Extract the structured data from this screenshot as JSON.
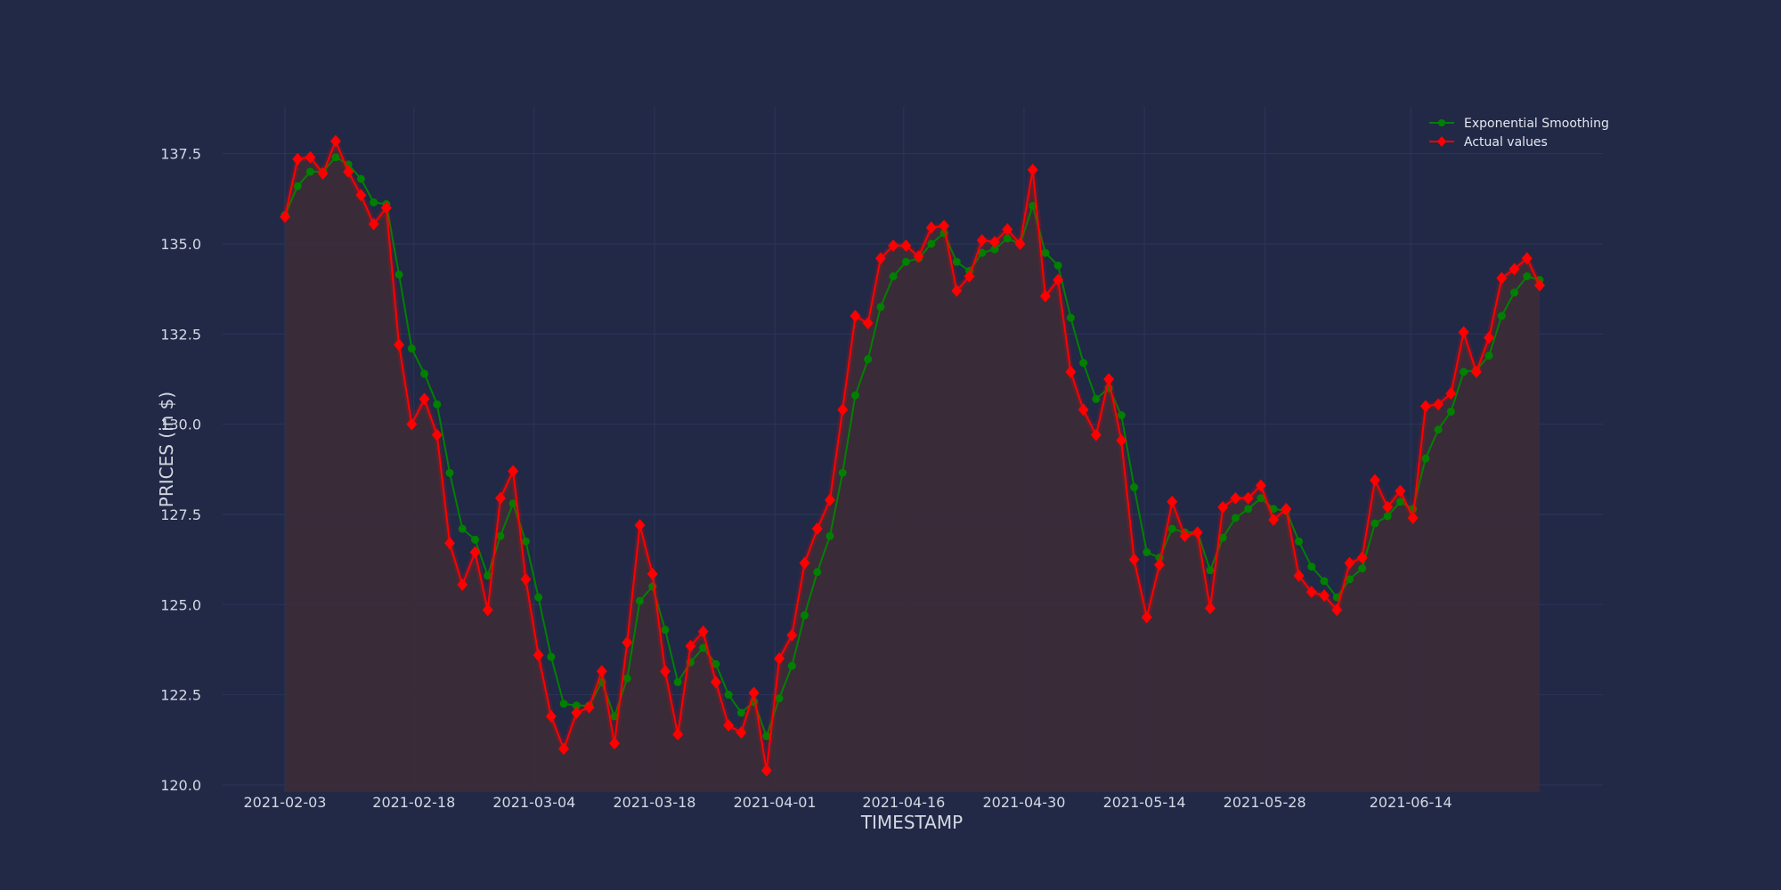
{
  "chart_data": {
    "type": "line",
    "title": "",
    "xlabel": "TIMESTAMP",
    "ylabel": "PRICES (in $)",
    "ylim": [
      119.8,
      138.8
    ],
    "yticks": [
      "120.0",
      "122.5",
      "125.0",
      "127.5",
      "130.0",
      "132.5",
      "135.0",
      "137.5"
    ],
    "xticks": [
      "2021-02-03",
      "2021-02-18",
      "2021-03-04",
      "2021-03-18",
      "2021-04-01",
      "2021-04-16",
      "2021-04-30",
      "2021-05-14",
      "2021-05-28",
      "2021-06-14"
    ],
    "grid": true,
    "legend_position": "top-right",
    "series": [
      {
        "name": "Exponential Smoothing",
        "color": "#008000",
        "marker": "circle",
        "values": [
          135.8,
          136.6,
          137.0,
          137.0,
          137.4,
          137.2,
          136.8,
          136.15,
          136.1,
          134.15,
          132.1,
          131.4,
          130.55,
          128.65,
          127.1,
          126.8,
          125.8,
          126.9,
          127.8,
          126.75,
          125.2,
          123.55,
          122.25,
          122.2,
          122.2,
          122.85,
          121.9,
          122.95,
          125.1,
          125.5,
          124.3,
          122.85,
          123.4,
          123.8,
          123.35,
          122.5,
          122.0,
          122.3,
          121.35,
          122.4,
          123.3,
          124.7,
          125.9,
          126.9,
          128.65,
          130.8,
          131.8,
          133.25,
          134.1,
          134.5,
          134.6,
          135.0,
          135.3,
          134.5,
          134.25,
          134.75,
          134.85,
          135.15,
          135.0,
          136.05,
          134.75,
          134.4,
          132.95,
          131.7,
          130.7,
          131.0,
          130.25,
          128.25,
          126.45,
          126.3,
          127.1,
          127.0,
          127.0,
          125.95,
          126.85,
          127.4,
          127.65,
          127.95,
          127.65,
          127.6,
          126.75,
          126.05,
          125.65,
          125.2,
          125.7,
          126.0,
          127.25,
          127.45,
          127.85,
          127.65,
          129.05,
          129.85,
          130.35,
          131.45,
          131.5,
          131.9,
          133.0,
          133.65,
          134.1,
          134.0
        ]
      },
      {
        "name": "Actual values",
        "color": "#ff0000",
        "marker": "diamond",
        "values": [
          135.75,
          137.35,
          137.4,
          136.95,
          137.85,
          137.0,
          136.35,
          135.55,
          136.0,
          132.2,
          130.0,
          130.7,
          129.7,
          126.7,
          125.55,
          126.45,
          124.85,
          127.95,
          128.7,
          125.7,
          123.6,
          121.9,
          121.0,
          122.0,
          122.15,
          123.15,
          121.15,
          123.95,
          127.2,
          125.85,
          123.15,
          121.4,
          123.85,
          124.25,
          122.85,
          121.65,
          121.45,
          122.55,
          120.4,
          123.5,
          124.15,
          126.15,
          127.1,
          127.9,
          130.4,
          133.0,
          132.8,
          134.6,
          134.95,
          134.95,
          134.65,
          135.45,
          135.5,
          133.7,
          134.1,
          135.1,
          135.05,
          135.4,
          135.0,
          137.05,
          133.55,
          134.0,
          131.45,
          130.4,
          129.7,
          131.25,
          129.55,
          126.25,
          124.65,
          126.1,
          127.85,
          126.9,
          127.0,
          124.9,
          127.7,
          127.95,
          127.95,
          128.3,
          127.35,
          127.65,
          125.8,
          125.35,
          125.25,
          124.85,
          126.15,
          126.3,
          128.45,
          127.7,
          128.15,
          127.4,
          130.5,
          130.55,
          130.85,
          132.55,
          131.45,
          132.4,
          134.05,
          134.3,
          134.6,
          133.85
        ]
      }
    ]
  }
}
